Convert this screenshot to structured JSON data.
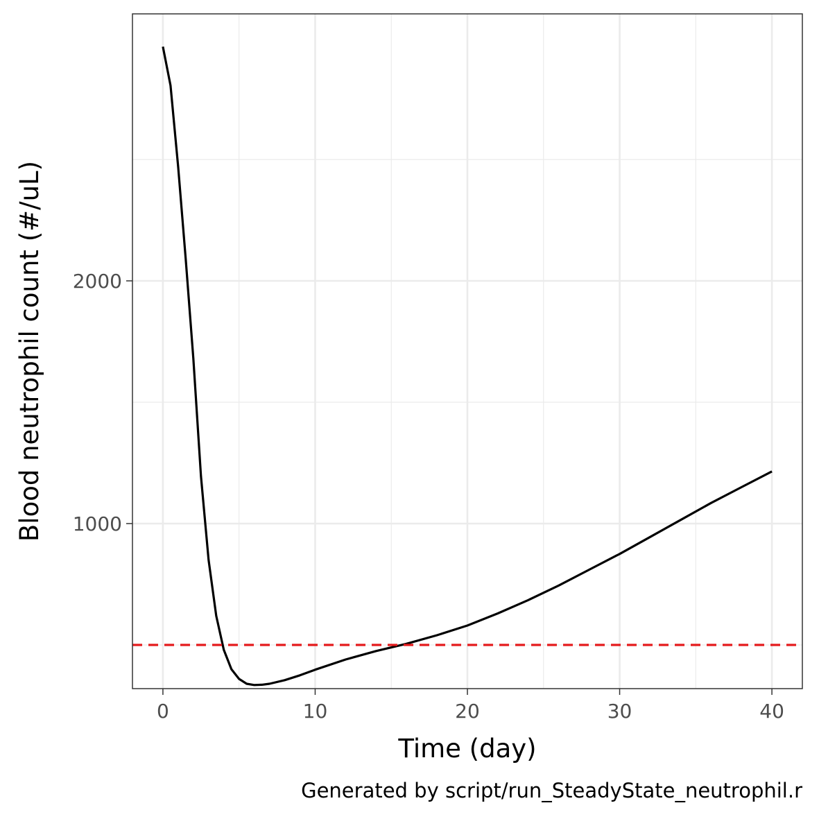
{
  "chart_data": {
    "type": "line",
    "xlabel": "Time (day)",
    "ylabel": "Blood neutrophil count (#/uL)",
    "caption": "Generated by script/run_SteadyState_neutrophil.r",
    "xlim": [
      -2,
      42
    ],
    "ylim": [
      320,
      3100
    ],
    "x_major_ticks": [
      0,
      10,
      20,
      30,
      40
    ],
    "x_tick_labels": [
      "0",
      "10",
      "20",
      "30",
      "40"
    ],
    "x_minor_ticks": [
      5,
      15,
      25,
      35
    ],
    "y_major_ticks": [
      1000,
      2000
    ],
    "y_tick_labels": [
      "1000",
      "2000"
    ],
    "y_minor_ticks": [
      500,
      1500,
      2500
    ],
    "grid": true,
    "series": [
      {
        "color": "#000000",
        "x": [
          0,
          0.5,
          1,
          1.5,
          2,
          2.5,
          3,
          3.5,
          4,
          4.5,
          5,
          5.5,
          6,
          6.5,
          7,
          8,
          9,
          10,
          12,
          14,
          16,
          18,
          20,
          22,
          24,
          26,
          28,
          30,
          32,
          34,
          36,
          38,
          40
        ],
        "y": [
          2965,
          2805,
          2470,
          2090,
          1680,
          1195,
          850,
          620,
          480,
          400,
          360,
          340,
          335,
          336,
          340,
          355,
          375,
          398,
          440,
          475,
          505,
          540,
          580,
          630,
          685,
          745,
          810,
          875,
          945,
          1015,
          1085,
          1150,
          1215
        ]
      }
    ],
    "reference_line": {
      "orientation": "horizontal",
      "y": 500,
      "color": "#e41a1c",
      "style": "dashed"
    }
  }
}
